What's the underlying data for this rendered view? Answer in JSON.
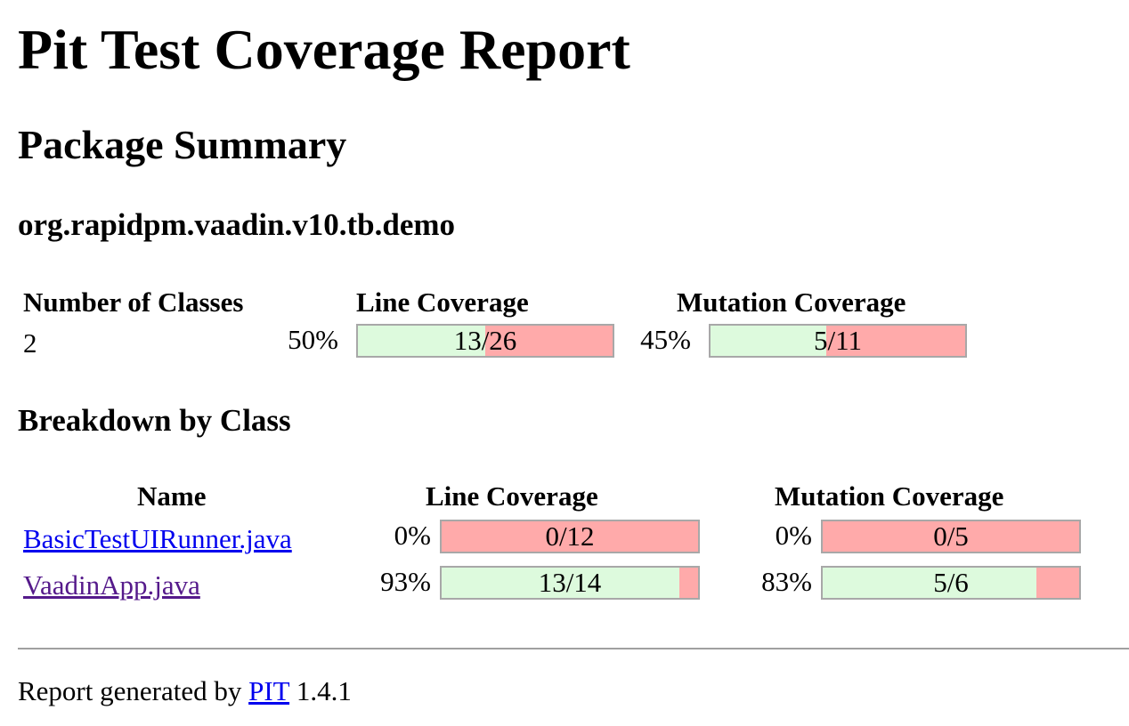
{
  "title": "Pit Test Coverage Report",
  "package_summary": {
    "heading": "Package Summary",
    "package_name": "org.rapidpm.vaadin.v10.tb.demo",
    "headers": {
      "classes": "Number of Classes",
      "line": "Line Coverage",
      "mutation": "Mutation Coverage"
    },
    "classes_count": "2",
    "line_percent": "50%",
    "line_label": "13/26",
    "line_fraction": 0.5,
    "mutation_percent": "45%",
    "mutation_label": "5/11",
    "mutation_fraction": 0.4545
  },
  "breakdown": {
    "heading": "Breakdown by Class",
    "headers": {
      "name": "Name",
      "line": "Line Coverage",
      "mutation": "Mutation Coverage"
    },
    "rows": [
      {
        "name": "BasicTestUIRunner.java",
        "line_percent": "0%",
        "line_label": "0/12",
        "line_fraction": 0.0,
        "mutation_percent": "0%",
        "mutation_label": "0/5",
        "mutation_fraction": 0.0
      },
      {
        "name": "VaadinApp.java",
        "line_percent": "93%",
        "line_label": "13/14",
        "line_fraction": 0.9286,
        "mutation_percent": "83%",
        "mutation_label": "5/6",
        "mutation_fraction": 0.8333
      }
    ]
  },
  "footer": {
    "prefix": "Report generated by",
    "link": "PIT",
    "version": "1.4.1"
  },
  "colors": {
    "covered": "#ddfadd",
    "uncovered": "#ffaaaa",
    "link": "#0000ee",
    "visited_link": "#551a8b"
  }
}
